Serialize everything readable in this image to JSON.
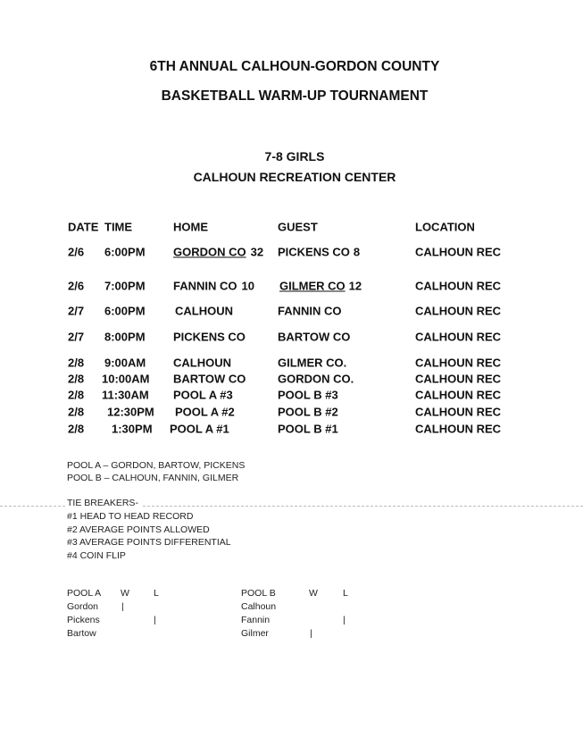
{
  "title_line1": "6TH ANNUAL CALHOUN-GORDON COUNTY",
  "title_line2": "BASKETBALL WARM-UP TOURNAMENT",
  "division": "7-8 GIRLS",
  "venue": "CALHOUN RECREATION CENTER",
  "schedule": {
    "headers": {
      "date": "DATE",
      "time": "TIME",
      "home": "HOME",
      "guest": "GUEST",
      "location": "LOCATION"
    },
    "rows": [
      {
        "date": "2/6",
        "time": "6:00PM",
        "home": "GORDON CO",
        "home_score": "32",
        "guest": "PICKENS CO",
        "guest_score": "8",
        "location": "CALHOUN REC",
        "winner": "home"
      },
      {
        "date": "2/6",
        "time": "7:00PM",
        "home": "FANNIN CO",
        "home_score": "10",
        "guest": "GILMER CO",
        "guest_score": "12",
        "location": "CALHOUN REC",
        "winner": "guest"
      },
      {
        "date": "2/7",
        "time": "6:00PM",
        "home": "CALHOUN",
        "home_score": "",
        "guest": "FANNIN CO",
        "guest_score": "",
        "location": "CALHOUN REC",
        "winner": ""
      },
      {
        "date": "2/7",
        "time": "8:00PM",
        "home": "PICKENS CO",
        "home_score": "",
        "guest": "BARTOW CO",
        "guest_score": "",
        "location": "CALHOUN REC",
        "winner": ""
      },
      {
        "date": "2/8",
        "time": "9:00AM",
        "home": "CALHOUN",
        "home_score": "",
        "guest": "GILMER CO.",
        "guest_score": "",
        "location": "CALHOUN REC",
        "winner": ""
      },
      {
        "date": "2/8",
        "time": "10:00AM",
        "home": "BARTOW CO",
        "home_score": "",
        "guest": "GORDON CO.",
        "guest_score": "",
        "location": "CALHOUN REC",
        "winner": ""
      },
      {
        "date": "2/8",
        "time": "11:30AM",
        "home": "POOL A #3",
        "home_score": "",
        "guest": "POOL B #3",
        "guest_score": "",
        "location": "CALHOUN REC",
        "winner": ""
      },
      {
        "date": "2/8",
        "time": "12:30PM",
        "home": "POOL A #2",
        "home_score": "",
        "guest": "POOL B #2",
        "guest_score": "",
        "location": "CALHOUN REC",
        "winner": ""
      },
      {
        "date": "2/8",
        "time": "1:30PM",
        "home": "POOL A #1",
        "home_score": "",
        "guest": "POOL B #1",
        "guest_score": "",
        "location": "CALHOUN REC",
        "winner": ""
      }
    ]
  },
  "pools": [
    "POOL A – GORDON, BARTOW, PICKENS",
    "POOL B – CALHOUN, FANNIN, GILMER"
  ],
  "tie_breakers": {
    "heading": "TIE BREAKERS-",
    "items": [
      "#1 HEAD TO HEAD RECORD",
      "#2 AVERAGE POINTS ALLOWED",
      "#3 AVERAGE POINTS DIFFERENTIAL",
      "#4 COIN FLIP"
    ]
  },
  "standings": [
    {
      "pool": "POOL A",
      "w_label": "W",
      "l_label": "L",
      "teams": [
        {
          "name": "Gordon",
          "w": "|",
          "l": ""
        },
        {
          "name": "Pickens",
          "w": "",
          "l": "|"
        },
        {
          "name": "Bartow",
          "w": "",
          "l": ""
        }
      ]
    },
    {
      "pool": "POOL B",
      "w_label": "W",
      "l_label": "L",
      "teams": [
        {
          "name": "Calhoun",
          "w": "",
          "l": ""
        },
        {
          "name": "Fannin",
          "w": "",
          "l": "|"
        },
        {
          "name": "Gilmer",
          "w": "|",
          "l": ""
        }
      ]
    }
  ]
}
